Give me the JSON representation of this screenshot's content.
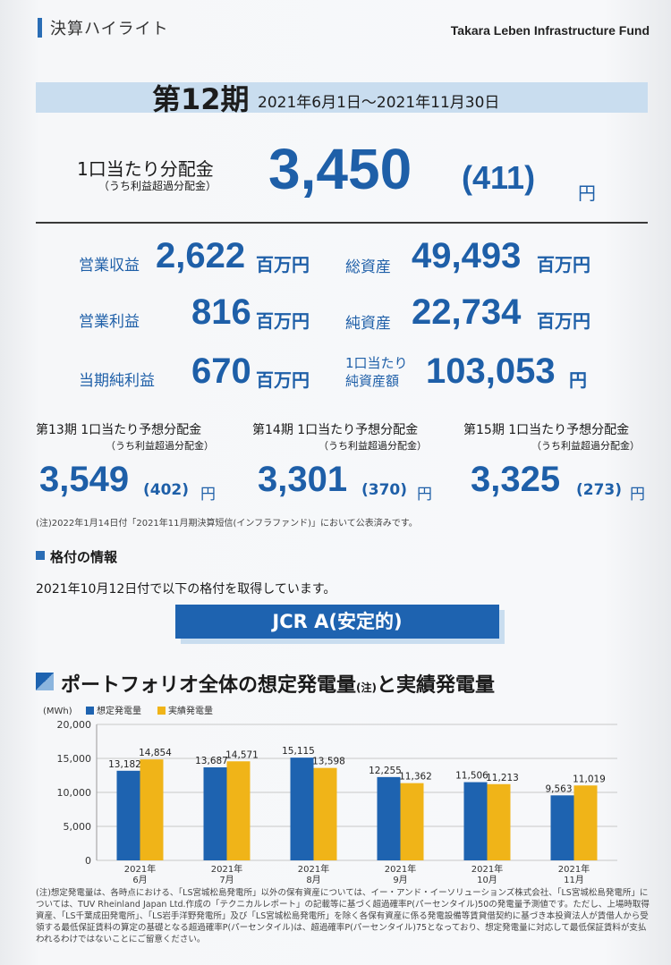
{
  "header": {
    "left": "決算ハイライト",
    "right": "Takara Leben Infrastructure Fund"
  },
  "period": {
    "title": "第12期",
    "dates": "2021年6月1日～2021年11月30日"
  },
  "distribution": {
    "label": "1口当たり分配金",
    "sub": "（うち利益超過分配金）",
    "value": "3,450",
    "paren": "(411)",
    "unit": "円"
  },
  "kpis": [
    {
      "label": "営業収益",
      "value": "2,622",
      "unit": "百万円"
    },
    {
      "label": "営業利益",
      "value": "816",
      "unit": "百万円"
    },
    {
      "label": "当期純利益",
      "value": "670",
      "unit": "百万円"
    },
    {
      "label": "総資産",
      "value": "49,493",
      "unit": "百万円"
    },
    {
      "label": "純資産",
      "value": "22,734",
      "unit": "百万円"
    },
    {
      "label": "1口当たり\n純資産額",
      "value": "103,053",
      "unit": "円"
    }
  ],
  "forecasts": [
    {
      "label": "第13期 1口当たり予想分配金",
      "sub": "（うち利益超過分配金）",
      "value": "3,549",
      "paren": "(402)",
      "unit": "円"
    },
    {
      "label": "第14期 1口当たり予想分配金",
      "sub": "（うち利益超過分配金）",
      "value": "3,301",
      "paren": "(370)",
      "unit": "円"
    },
    {
      "label": "第15期 1口当たり予想分配金",
      "sub": "（うち利益超過分配金）",
      "value": "3,325",
      "paren": "(273)",
      "unit": "円"
    }
  ],
  "note1": "(注)2022年1月14日付「2021年11月期決算短信(インフラファンド)」において公表済みです。",
  "rating": {
    "title": "格付の情報",
    "text": "2021年10月12日付で以下の格付を取得しています。",
    "badge": "JCR A(安定的)"
  },
  "portfolio_title": {
    "main": "ポートフォリオ全体の想定発電量",
    "note": "(注)",
    "tail": "と実績発電量"
  },
  "chart_data": {
    "type": "bar",
    "unit_label": "(MWh)",
    "categories": [
      "2021年\n6月",
      "2021年\n7月",
      "2021年\n8月",
      "2021年\n9月",
      "2021年\n10月",
      "2021年\n11月"
    ],
    "series": [
      {
        "name": "想定発電量",
        "values": [
          13182,
          13687,
          15115,
          12255,
          11506,
          9563
        ],
        "labels": [
          "13,182",
          "13,687",
          "15,115",
          "12,255",
          "11,506",
          "9,563"
        ],
        "color": "#1e63b0"
      },
      {
        "name": "実績発電量",
        "values": [
          14854,
          14571,
          13598,
          11362,
          11213,
          11019
        ],
        "labels": [
          "14,854",
          "14,571",
          "13,598",
          "11,362",
          "11,213",
          "11,019"
        ],
        "color": "#f0b418"
      }
    ],
    "yticks": [
      "20,000",
      "15,000",
      "10,000",
      "5,000",
      "0"
    ],
    "ylim": [
      0,
      20000
    ],
    "grid": true,
    "legend": "top-left"
  },
  "note2": "(注)想定発電量は、各時点における、「LS宮城松島発電所」以外の保有資産については、イー・アンド・イーソリューションズ株式会社、「LS宮城松島発電所」については、TUV Rheinland Japan Ltd.作成の「テクニカルレポート」の記載等に基づく超過確率P(パーセンタイル)50の発電量予測値です。ただし、上場時取得資産、「LS千葉成田発電所」、「LS岩手洋野発電所」及び「LS宮城松島発電所」を除く各保有資産に係る発電設備等賃貸借契約に基づき本投資法人が賃借人から受領する最低保証賃料の算定の基礎となる超過確率P(パーセンタイル)は、超過確率P(パーセンタイル)75となっており、想定発電量に対応して最低保証賃料が支払われるわけではないことにご留意ください。"
}
